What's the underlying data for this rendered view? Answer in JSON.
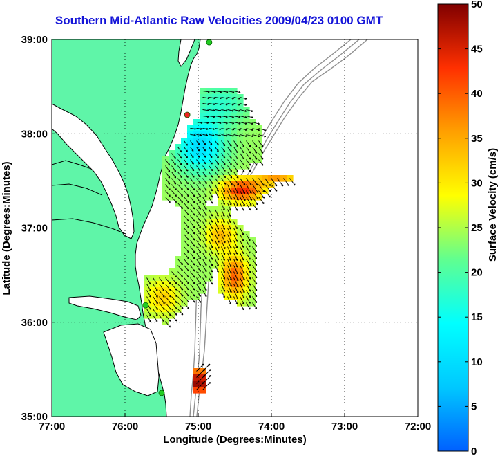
{
  "title": "Southern Mid-Atlantic Raw Velocities 2009/04/23 0100 GMT",
  "map": {
    "xlabel": "Longitude (Degrees:Minutes)",
    "ylabel": "Latitude (Degrees:Minutes)",
    "lon_ticks": [
      {
        "value": -77,
        "label": "77:00"
      },
      {
        "value": -76,
        "label": "76:00"
      },
      {
        "value": -75,
        "label": "75:00"
      },
      {
        "value": -74,
        "label": "74:00"
      },
      {
        "value": -73,
        "label": "73:00"
      },
      {
        "value": -72,
        "label": "72:00"
      }
    ],
    "lat_ticks": [
      {
        "value": 39,
        "label": "39:00"
      },
      {
        "value": 38,
        "label": "38:00"
      },
      {
        "value": 37,
        "label": "37:00"
      },
      {
        "value": 36,
        "label": "36:00"
      },
      {
        "value": 35,
        "label": "35:00"
      }
    ],
    "lon_range": [
      -77,
      -72
    ],
    "lat_range": [
      35,
      39
    ],
    "grid": "dotted",
    "land_color": "#5ff5a8",
    "coast_color": "#000000",
    "bathymetry_color": "#909090",
    "station_color": "#22cc22",
    "station_highlight_color": "#ee2222"
  },
  "colorbar": {
    "label": "Surface Velocity (cm/s)",
    "min": 0,
    "max": 50,
    "ticks": [
      {
        "value": 0,
        "label": "0"
      },
      {
        "value": 5,
        "label": "5"
      },
      {
        "value": 10,
        "label": "10"
      },
      {
        "value": 15,
        "label": "15"
      },
      {
        "value": 20,
        "label": "20"
      },
      {
        "value": 25,
        "label": "25"
      },
      {
        "value": 30,
        "label": "30"
      },
      {
        "value": 35,
        "label": "35"
      },
      {
        "value": 40,
        "label": "40"
      },
      {
        "value": 45,
        "label": "45"
      },
      {
        "value": 50,
        "label": "50"
      }
    ],
    "colormap": [
      "#0060ff",
      "#00c8ff",
      "#00ffff",
      "#60ff90",
      "#ffff00",
      "#ffa000",
      "#ff3000",
      "#800000"
    ]
  },
  "stations": [
    {
      "lon": -74.85,
      "lat": 38.97,
      "color": "green"
    },
    {
      "lon": -75.15,
      "lat": 38.2,
      "color": "red"
    },
    {
      "lon": -75.72,
      "lat": 36.18,
      "color": "green"
    },
    {
      "lon": -75.5,
      "lat": 35.25,
      "color": "green"
    }
  ]
}
